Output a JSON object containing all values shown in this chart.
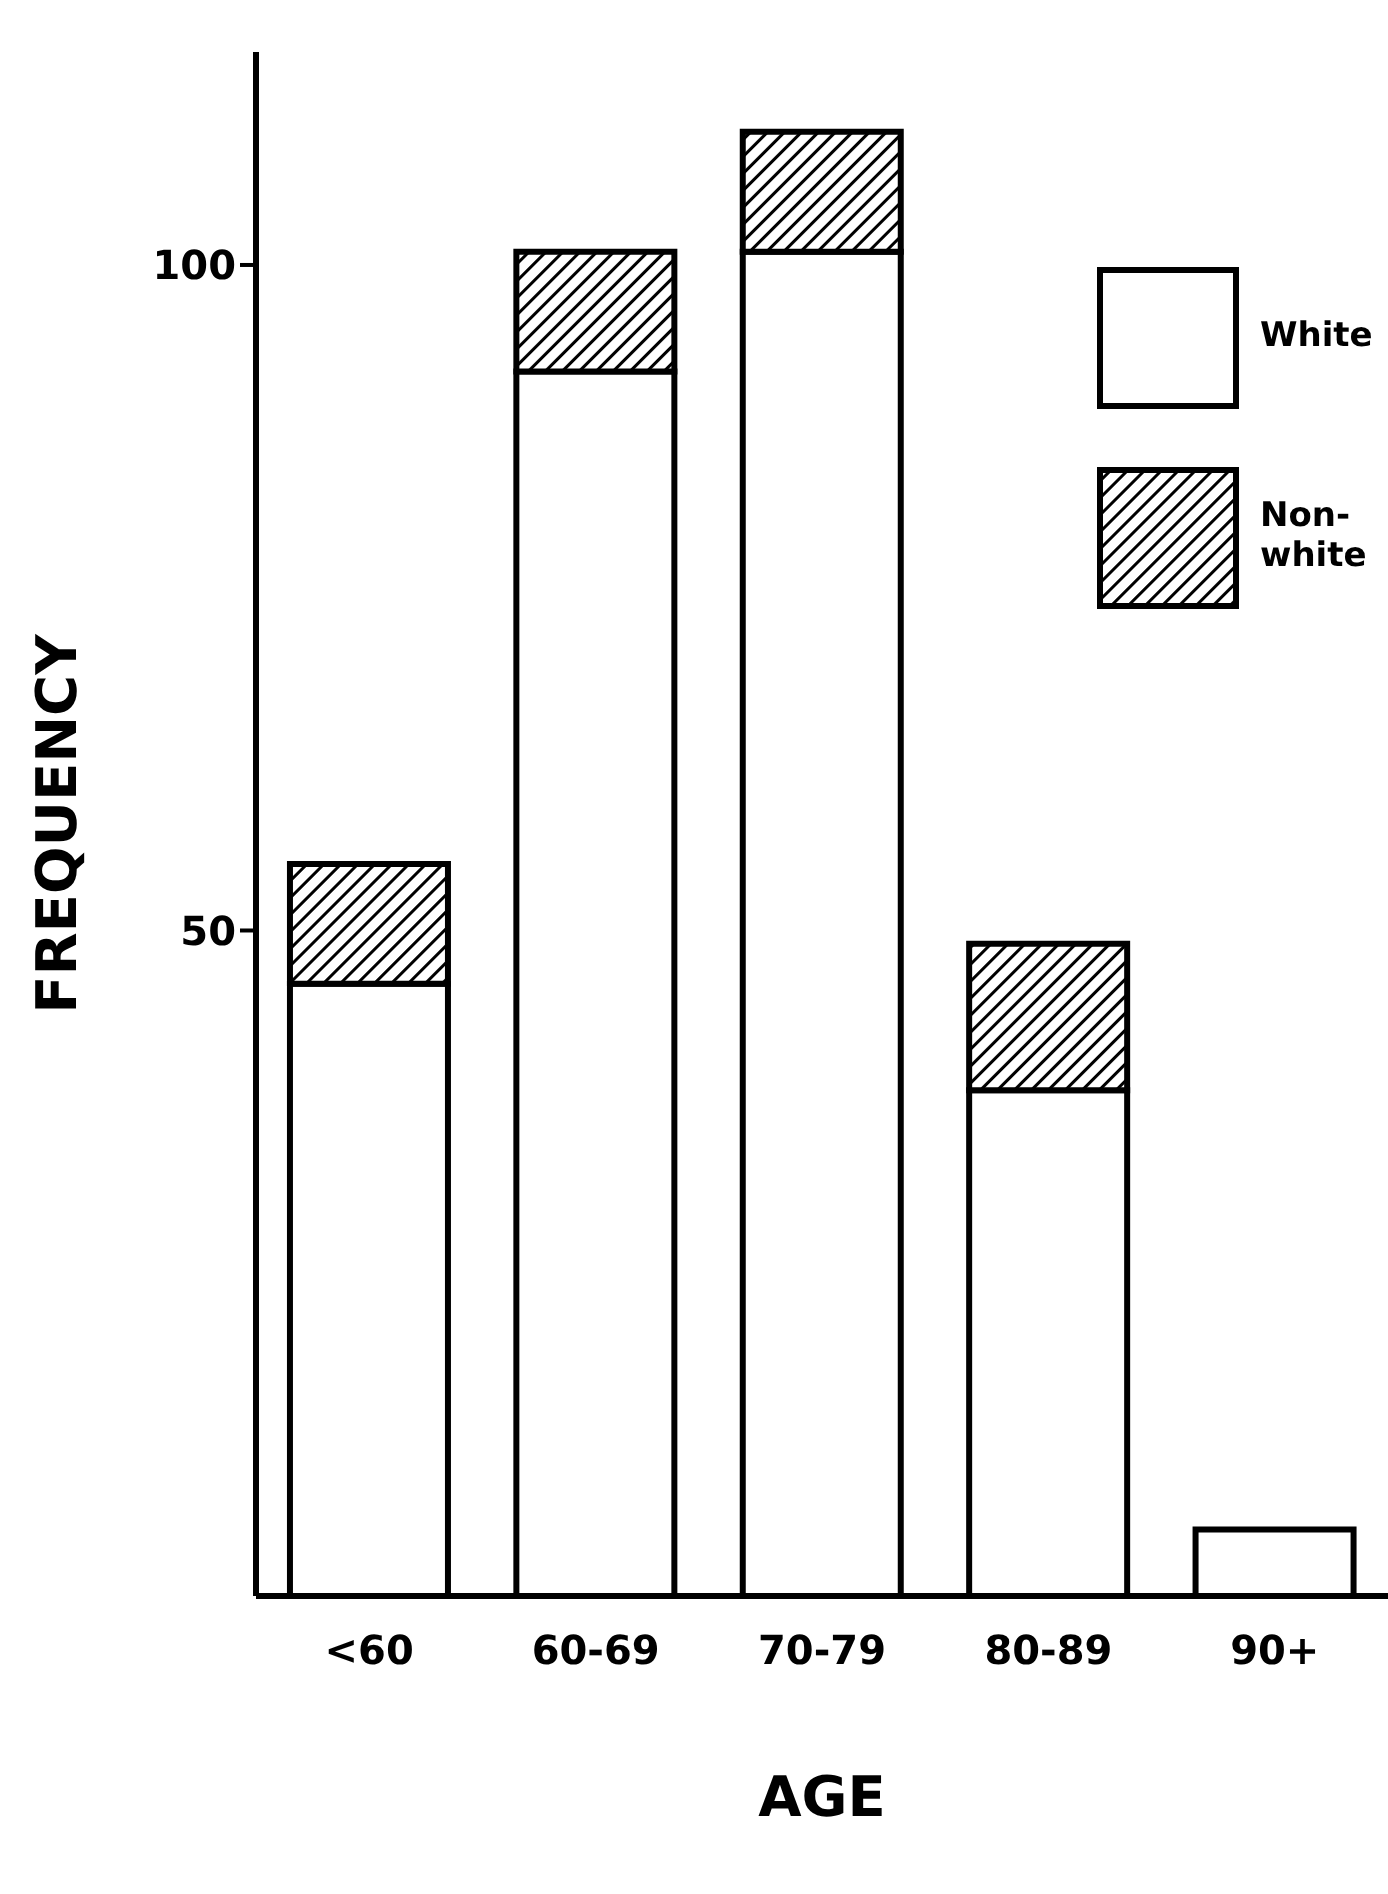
{
  "chart_data": {
    "type": "bar",
    "stacked": true,
    "xlabel": "AGE",
    "ylabel": "FREQUENCY",
    "categories": [
      "<60",
      "60-69",
      "70-79",
      "80-89",
      "90+"
    ],
    "series": [
      {
        "name": "White",
        "color": "#ffffff",
        "values": [
          46,
          92,
          101,
          38,
          5
        ]
      },
      {
        "name": "Non-white",
        "color": "#000000",
        "values": [
          9,
          9,
          9,
          11,
          0
        ]
      }
    ],
    "ylim": [
      0,
      116
    ],
    "yticks": [
      50,
      100
    ],
    "grid": false,
    "legend": "top right"
  }
}
